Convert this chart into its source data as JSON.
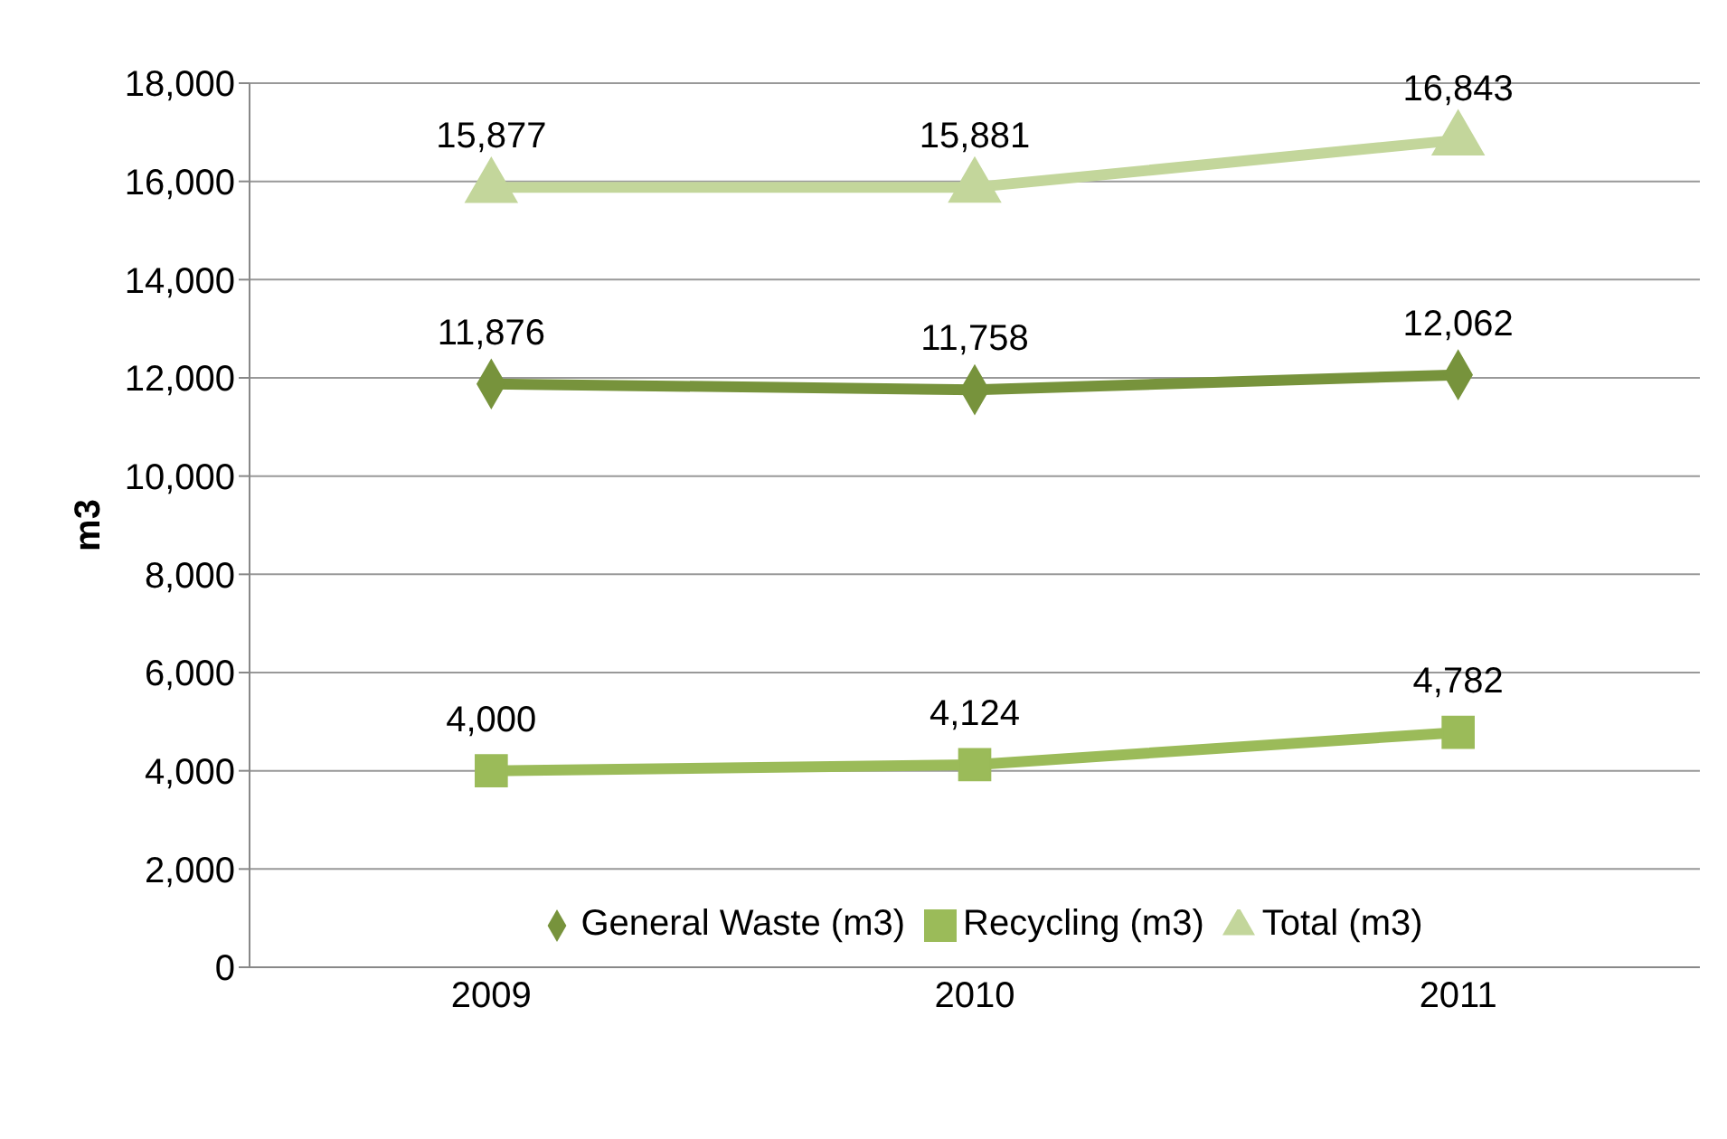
{
  "chart_data": {
    "type": "line",
    "ylabel": "m3",
    "categories": [
      "2009",
      "2010",
      "2011"
    ],
    "series": [
      {
        "name": "General Waste (m3)",
        "color": "#77933c",
        "marker": "diamond",
        "values": [
          11876,
          11758,
          12062
        ],
        "value_labels": [
          "11,876",
          "11,758",
          "12,062"
        ]
      },
      {
        "name": "Recycling (m3)",
        "color": "#9bbb59",
        "marker": "square",
        "values": [
          4000,
          4124,
          4782
        ],
        "value_labels": [
          "4,000",
          "4,124",
          "4,782"
        ]
      },
      {
        "name": "Total (m3)",
        "color": "#c3d69b",
        "marker": "triangle",
        "values": [
          15877,
          15881,
          16843
        ],
        "value_labels": [
          "15,877",
          "15,881",
          "16,843"
        ]
      }
    ],
    "ylim": [
      0,
      18000
    ],
    "yticks": [
      0,
      {
        "value": 2000,
        "label": "2,000"
      },
      {
        "value": 4000,
        "label": "4,000"
      },
      {
        "value": 6000,
        "label": "6,000"
      },
      {
        "value": 8000,
        "label": "8,000"
      },
      {
        "value": 10000,
        "label": "10,000"
      },
      {
        "value": 12000,
        "label": "12,000"
      },
      {
        "value": 14000,
        "label": "14,000"
      },
      {
        "value": 16000,
        "label": "16,000"
      },
      {
        "value": 18000,
        "label": "18,000"
      }
    ],
    "grid": "y",
    "legend": "bottom"
  }
}
